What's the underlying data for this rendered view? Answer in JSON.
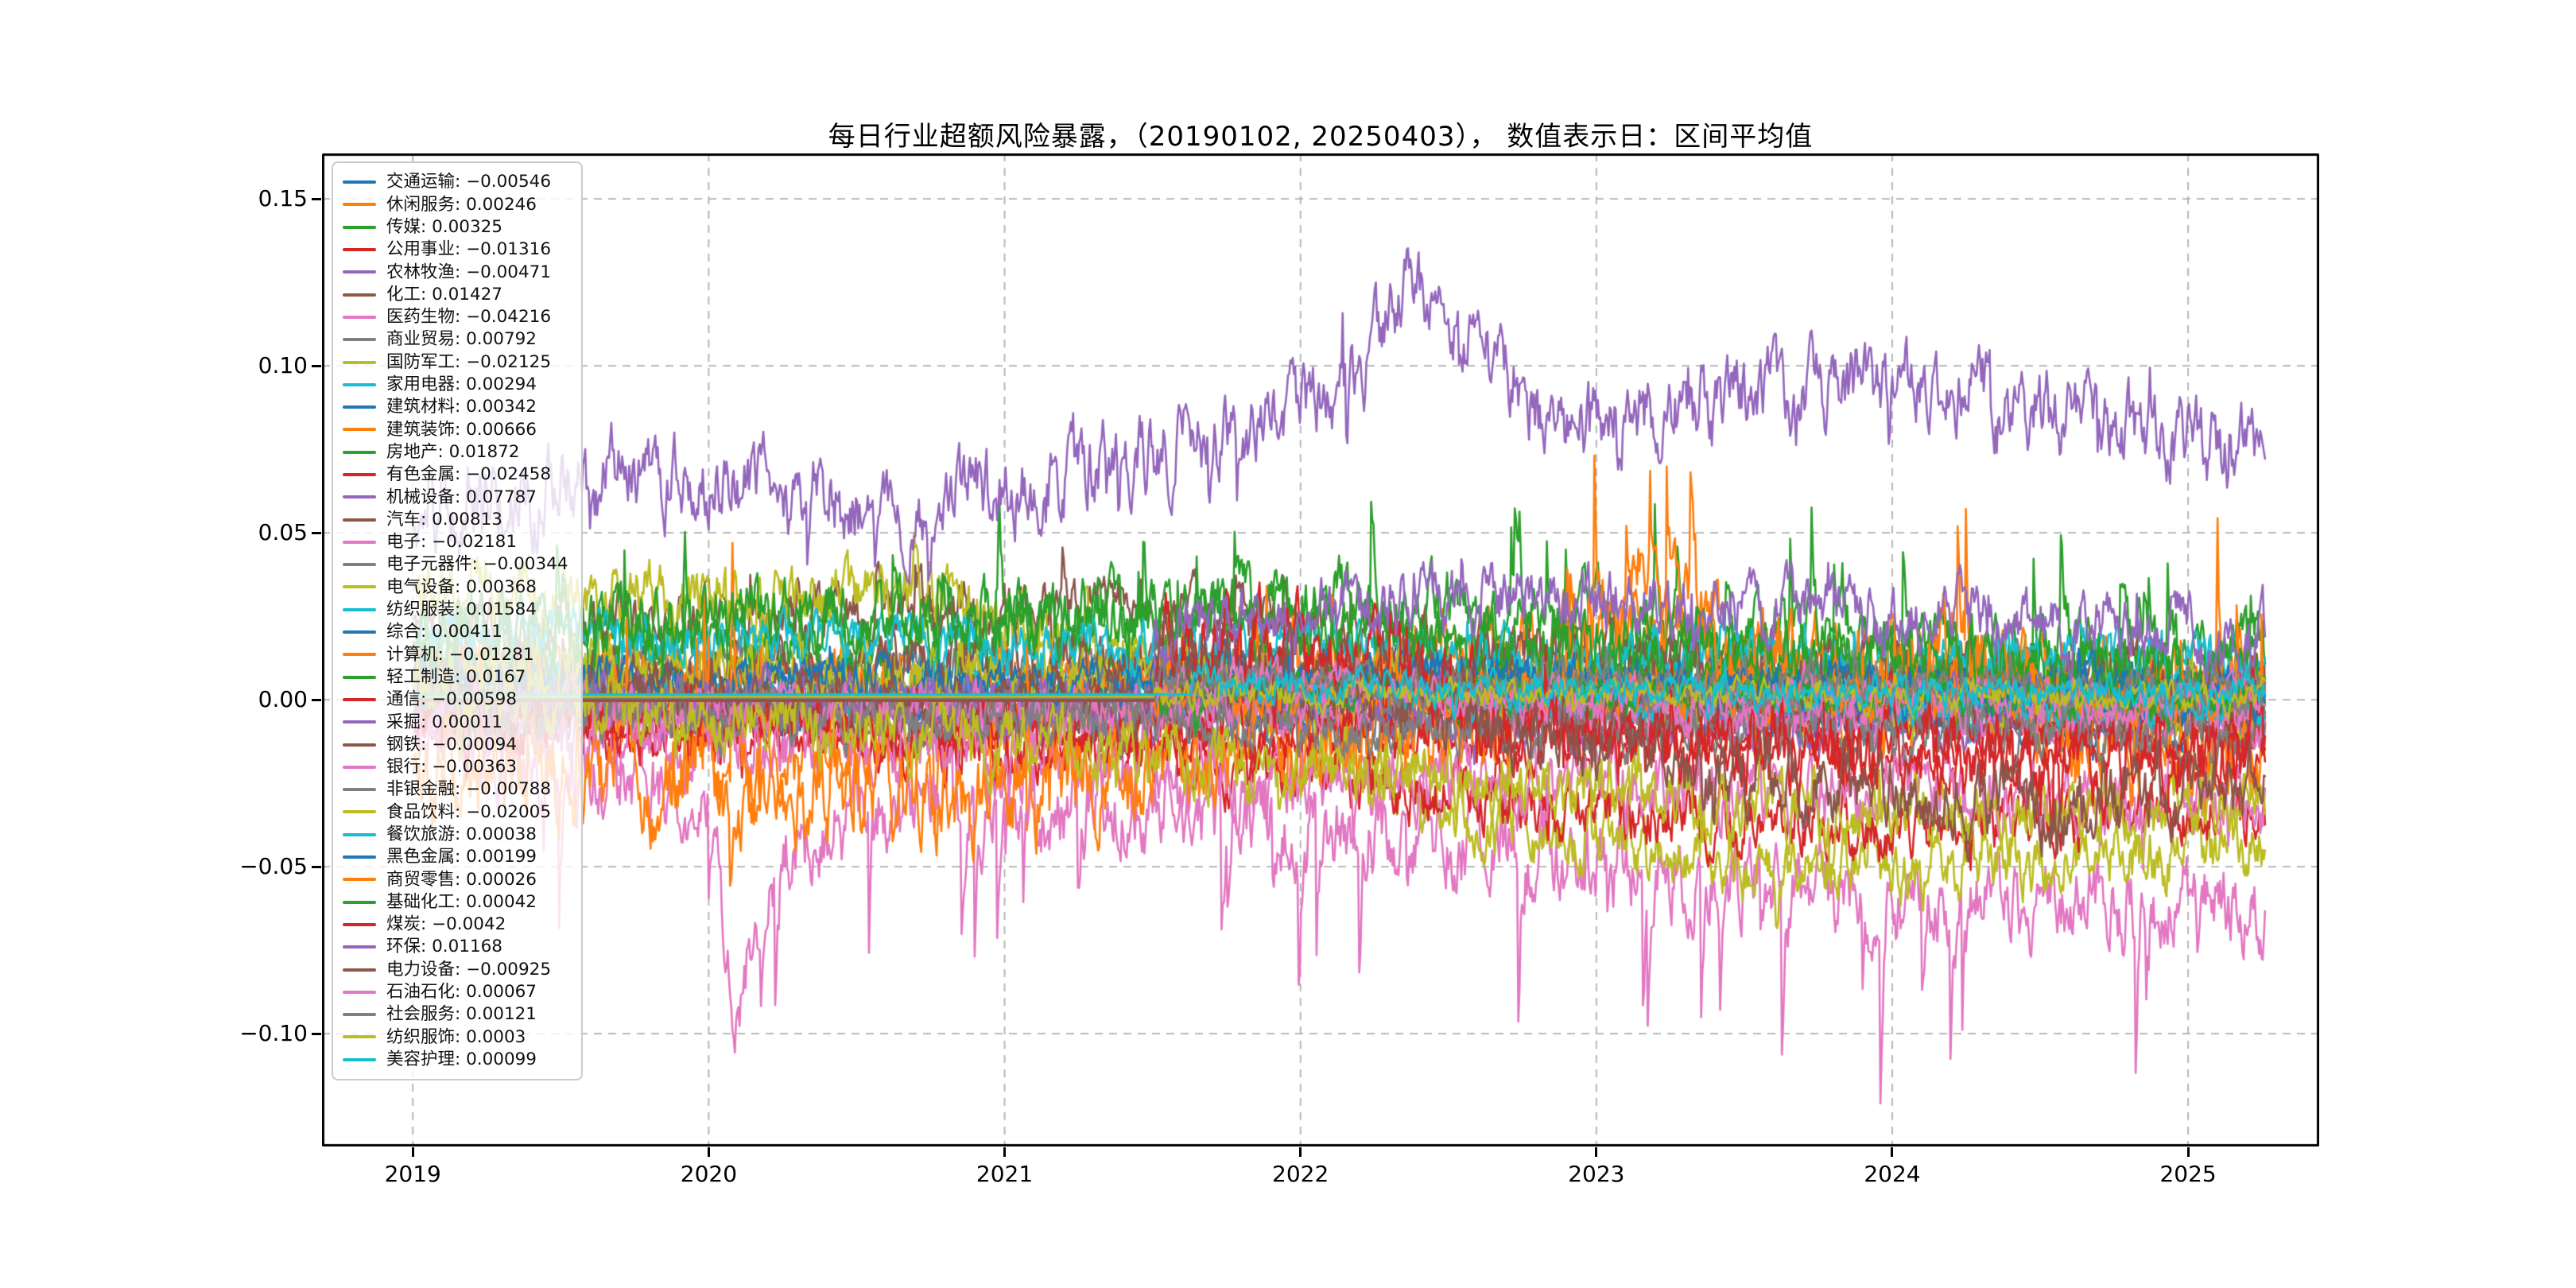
{
  "title": "每日行业超额风险暴露，（20190102, 20250403），  数值表示日：区间平均值",
  "palette": [
    "#1f77b4",
    "#ff7f0e",
    "#2ca02c",
    "#d62728",
    "#9467bd",
    "#8c564b",
    "#e377c2",
    "#7f7f7f",
    "#bcbd22",
    "#17becf"
  ],
  "chart_data": {
    "type": "line",
    "title": "每日行业超额风险暴露，（20190102, 20250403），  数值表示日：区间平均值",
    "date_start": "20190102",
    "date_end": "20250403",
    "grid": "dashed",
    "grid_color": "#b0b0b0",
    "legend_position": "upper-left",
    "line_width": 2.6,
    "x_axis": {
      "ticks": [
        {
          "year": 2019,
          "label": "2019"
        },
        {
          "year": 2020,
          "label": "2020"
        },
        {
          "year": 2021,
          "label": "2021"
        },
        {
          "year": 2022,
          "label": "2022"
        },
        {
          "year": 2023,
          "label": "2023"
        },
        {
          "year": 2024,
          "label": "2024"
        },
        {
          "year": 2025,
          "label": "2025"
        }
      ],
      "range_years": [
        2018.693,
        2025.443
      ],
      "data_span_years": [
        2019.005,
        2025.26
      ]
    },
    "y_axis": {
      "ticks": [
        {
          "v": 0.15,
          "label": "0.15"
        },
        {
          "v": 0.1,
          "label": "0.10"
        },
        {
          "v": 0.05,
          "label": "0.05"
        },
        {
          "v": 0.0,
          "label": "0.00"
        },
        {
          "v": -0.05,
          "label": "−0.05"
        },
        {
          "v": -0.1,
          "label": "−0.10"
        }
      ],
      "range": [
        -0.1338,
        0.1636
      ]
    },
    "series": [
      {
        "label": "交通运输",
        "value_text": "−0.00546",
        "mean": -0.00546,
        "color": "#1f77b4",
        "amp": 0.007,
        "keys": [
          [
            0,
            -0.003
          ],
          [
            1,
            -0.008
          ]
        ]
      },
      {
        "label": "休闲服务",
        "value_text": "0.00246",
        "mean": 0.00246,
        "color": "#ff7f0e",
        "amp": 0.013,
        "spike": 2.2,
        "bias": -0.2,
        "keys": [
          [
            0,
            0.008
          ],
          [
            0.15,
            0.002
          ],
          [
            0.172,
            -0.04
          ],
          [
            0.2,
            -0.022
          ],
          [
            0.3,
            -0.008
          ],
          [
            0.5,
            0.006
          ],
          [
            0.66,
            0.022
          ],
          [
            0.78,
            0.012
          ],
          [
            1,
            0.004
          ]
        ]
      },
      {
        "label": "传媒",
        "value_text": "0.00325",
        "mean": 0.00325,
        "color": "#2ca02c",
        "amp": 0.01,
        "keys": [
          [
            0,
            0.006
          ],
          [
            0.55,
            0.002
          ],
          [
            0.66,
            0.014
          ],
          [
            1,
            0.0
          ]
        ]
      },
      {
        "label": "公用事业",
        "value_text": "−0.01316",
        "mean": -0.01316,
        "color": "#d62728",
        "amp": 0.008,
        "keys": [
          [
            0,
            -0.008
          ],
          [
            0.5,
            -0.013
          ],
          [
            1,
            -0.018
          ]
        ]
      },
      {
        "label": "农林牧渔",
        "value_text": "−0.00471",
        "mean": -0.00471,
        "color": "#9467bd",
        "amp": 0.009,
        "keys": [
          [
            0,
            0.0
          ],
          [
            0.3,
            -0.006
          ],
          [
            1,
            -0.008
          ]
        ]
      },
      {
        "label": "化工",
        "value_text": "0.01427",
        "mean": 0.01427,
        "color": "#8c564b",
        "amp": 0.011,
        "keys": [
          [
            0,
            0.02
          ],
          [
            0.35,
            0.03
          ],
          [
            0.55,
            0.018
          ],
          [
            0.75,
            0.008
          ],
          [
            1,
            0.004
          ]
        ]
      },
      {
        "label": "医药生物",
        "value_text": "−0.04216",
        "mean": -0.04216,
        "color": "#e377c2",
        "amp": 0.016,
        "spike": 2.4,
        "bias": -0.7,
        "keys": [
          [
            0,
            -0.012
          ],
          [
            0.16,
            -0.028
          ],
          [
            0.173,
            -0.098
          ],
          [
            0.19,
            -0.052
          ],
          [
            0.26,
            -0.028
          ],
          [
            0.45,
            -0.035
          ],
          [
            0.6,
            -0.045
          ],
          [
            0.75,
            -0.058
          ],
          [
            0.9,
            -0.062
          ],
          [
            1,
            -0.06
          ]
        ]
      },
      {
        "label": "商业贸易",
        "value_text": "0.00792",
        "mean": 0.00792,
        "color": "#7f7f7f",
        "amp": 0.008,
        "keys": [
          [
            0,
            0.012
          ],
          [
            0.5,
            0.008
          ],
          [
            1,
            0.003
          ]
        ]
      },
      {
        "label": "国防军工",
        "value_text": "−0.02125",
        "mean": -0.02125,
        "color": "#bcbd22",
        "amp": 0.012,
        "keys": [
          [
            0,
            0.032
          ],
          [
            0.28,
            0.03
          ],
          [
            0.45,
            0.0
          ],
          [
            0.6,
            -0.042
          ],
          [
            0.78,
            -0.052
          ],
          [
            1,
            -0.045
          ]
        ]
      },
      {
        "label": "家用电器",
        "value_text": "0.00294",
        "mean": 0.00294,
        "color": "#17becf",
        "amp": 0.009,
        "keys": [
          [
            0,
            0.006
          ],
          [
            0.5,
            0.003
          ],
          [
            1,
            0.0
          ]
        ]
      },
      {
        "label": "建筑材料",
        "value_text": "0.00342",
        "mean": 0.00342,
        "color": "#1f77b4",
        "amp": 0.009,
        "keys": [
          [
            0,
            0.006
          ],
          [
            1,
            0.001
          ]
        ]
      },
      {
        "label": "建筑装饰",
        "value_text": "0.00666",
        "mean": 0.00666,
        "color": "#ff7f0e",
        "amp": 0.009,
        "keys": [
          [
            0,
            0.009
          ],
          [
            1,
            0.004
          ]
        ]
      },
      {
        "label": "房地产",
        "value_text": "0.01872",
        "mean": 0.01872,
        "color": "#2ca02c",
        "amp": 0.013,
        "spike": 2.0,
        "bias": 0.5,
        "keys": [
          [
            0,
            0.012
          ],
          [
            0.3,
            0.02
          ],
          [
            0.5,
            0.03
          ],
          [
            0.65,
            0.024
          ],
          [
            0.8,
            0.018
          ],
          [
            1,
            0.012
          ]
        ]
      },
      {
        "label": "有色金属",
        "value_text": "−0.02458",
        "mean": -0.02458,
        "color": "#d62728",
        "amp": 0.012,
        "keys": [
          [
            0,
            -0.004
          ],
          [
            0.35,
            -0.015
          ],
          [
            0.6,
            -0.03
          ],
          [
            0.8,
            -0.04
          ],
          [
            1,
            -0.034
          ]
        ]
      },
      {
        "label": "机械设备",
        "value_text": "0.07787",
        "mean": 0.07787,
        "color": "#9467bd",
        "amp": 0.015,
        "keys": [
          [
            0,
            0.055
          ],
          [
            0.12,
            0.068
          ],
          [
            0.28,
            0.058
          ],
          [
            0.44,
            0.08
          ],
          [
            0.5,
            0.092
          ],
          [
            0.535,
            0.124
          ],
          [
            0.57,
            0.108
          ],
          [
            0.62,
            0.08
          ],
          [
            0.7,
            0.09
          ],
          [
            0.8,
            0.096
          ],
          [
            0.9,
            0.085
          ],
          [
            1,
            0.072
          ]
        ]
      },
      {
        "label": "汽车",
        "value_text": "0.00813",
        "mean": 0.00813,
        "color": "#8c564b",
        "amp": 0.01,
        "keys": [
          [
            0,
            0.006
          ],
          [
            0.5,
            0.013
          ],
          [
            1,
            0.005
          ]
        ]
      },
      {
        "label": "电子",
        "value_text": "−0.02181",
        "mean": -0.02181,
        "color": "#e377c2",
        "amp": 0.013,
        "keys": [
          [
            0,
            -0.008
          ],
          [
            0.4,
            -0.02
          ],
          [
            0.7,
            -0.028
          ],
          [
            1,
            -0.03
          ]
        ]
      },
      {
        "label": "电子元器件",
        "value_text": "−0.00344",
        "mean": -0.00344,
        "color": "#7f7f7f",
        "amp": 0.007,
        "keys": [
          [
            0,
            -0.002
          ],
          [
            1,
            -0.005
          ]
        ]
      },
      {
        "label": "电气设备",
        "value_text": "0.00368",
        "mean": 0.00368,
        "color": "#bcbd22",
        "amp": 0.011,
        "keys": [
          [
            0,
            0.012
          ],
          [
            0.4,
            0.006
          ],
          [
            0.7,
            -0.002
          ],
          [
            1,
            -0.004
          ]
        ]
      },
      {
        "label": "纺织服装",
        "value_text": "0.01584",
        "mean": 0.01584,
        "color": "#17becf",
        "amp": 0.009,
        "keys": [
          [
            0,
            0.02
          ],
          [
            0.5,
            0.016
          ],
          [
            1,
            0.011
          ]
        ]
      },
      {
        "label": "综合",
        "value_text": "0.00411",
        "mean": 0.00411,
        "color": "#1f77b4",
        "amp": 0.008,
        "keys": [
          [
            0,
            0.006
          ],
          [
            1,
            0.002
          ]
        ]
      },
      {
        "label": "计算机",
        "value_text": "−0.01281",
        "mean": -0.01281,
        "color": "#ff7f0e",
        "amp": 0.018,
        "spike": 2.4,
        "bias": 0.55,
        "keys": [
          [
            0,
            -0.024
          ],
          [
            0.3,
            -0.03
          ],
          [
            0.52,
            -0.012
          ],
          [
            0.62,
            0.0
          ],
          [
            0.66,
            0.04
          ],
          [
            0.7,
            0.018
          ],
          [
            0.76,
            0.0
          ],
          [
            0.83,
            0.016
          ],
          [
            0.9,
            -0.012
          ],
          [
            1,
            -0.016
          ]
        ]
      },
      {
        "label": "轻工制造",
        "value_text": "0.0167",
        "mean": 0.0167,
        "color": "#2ca02c",
        "amp": 0.012,
        "keys": [
          [
            0,
            0.022
          ],
          [
            0.4,
            0.026
          ],
          [
            0.7,
            0.014
          ],
          [
            1,
            0.008
          ]
        ]
      },
      {
        "label": "通信",
        "value_text": "−0.00598",
        "mean": -0.00598,
        "color": "#d62728",
        "amp": 0.009,
        "keys": [
          [
            0,
            -0.004
          ],
          [
            1,
            -0.009
          ]
        ]
      },
      {
        "label": "采掘",
        "value_text": "0.00011",
        "mean": 0.00011,
        "color": "#9467bd",
        "amp": 0.008,
        "keys": [
          [
            0,
            0.001
          ],
          [
            1,
            -0.001
          ]
        ]
      },
      {
        "label": "钢铁",
        "value_text": "−0.00094",
        "mean": -0.00094,
        "color": "#8c564b",
        "amp": 0.009,
        "keys": [
          [
            0,
            0.001
          ],
          [
            1,
            -0.003
          ]
        ]
      },
      {
        "label": "银行",
        "value_text": "−0.00363",
        "mean": -0.00363,
        "color": "#e377c2",
        "amp": 0.008,
        "keys": [
          [
            0,
            -0.001
          ],
          [
            1,
            -0.006
          ]
        ]
      },
      {
        "label": "非银金融",
        "value_text": "−0.00788",
        "mean": -0.00788,
        "color": "#7f7f7f",
        "amp": 0.009,
        "keys": [
          [
            0,
            -0.004
          ],
          [
            1,
            -0.011
          ]
        ]
      },
      {
        "label": "食品饮料",
        "value_text": "−0.02005",
        "mean": -0.02005,
        "color": "#bcbd22",
        "amp": 0.012,
        "keys": [
          [
            0,
            0.006
          ],
          [
            0.3,
            -0.012
          ],
          [
            0.6,
            -0.027
          ],
          [
            0.85,
            -0.036
          ],
          [
            1,
            -0.03
          ]
        ]
      },
      {
        "label": "餐饮旅游",
        "value_text": "0.00038",
        "mean": 0.00038,
        "color": "#17becf",
        "amp": 0.006,
        "start": 0.45,
        "flat": 0.0013,
        "keys": [
          [
            0.45,
            0.002
          ],
          [
            1,
            -0.002
          ]
        ]
      },
      {
        "label": "黑色金属",
        "value_text": "0.00199",
        "mean": 0.00199,
        "color": "#1f77b4",
        "amp": 0.008,
        "start": 0.4,
        "flat": 0.0004,
        "keys": [
          [
            0.4,
            0.008
          ],
          [
            0.7,
            0.004
          ],
          [
            1,
            0.002
          ]
        ]
      },
      {
        "label": "商贸零售",
        "value_text": "0.00026",
        "mean": 0.00026,
        "color": "#ff7f0e",
        "amp": 0.007,
        "start": 0.4,
        "flat": 0.0,
        "keys": [
          [
            0.4,
            0.002
          ],
          [
            1,
            0.0
          ]
        ]
      },
      {
        "label": "基础化工",
        "value_text": "0.00042",
        "mean": 0.00042,
        "color": "#2ca02c",
        "amp": 0.007,
        "start": 0.4,
        "flat": 0.0002,
        "keys": [
          [
            0.4,
            0.003
          ],
          [
            1,
            0.0
          ]
        ]
      },
      {
        "label": "煤炭",
        "value_text": "−0.0042",
        "mean": -0.0042,
        "color": "#d62728",
        "amp": 0.016,
        "start": 0.4,
        "flat": -0.0002,
        "keys": [
          [
            0.4,
            0.012
          ],
          [
            0.5,
            0.02
          ],
          [
            0.56,
            0.0
          ],
          [
            0.62,
            -0.012
          ],
          [
            0.8,
            -0.016
          ],
          [
            1,
            -0.02
          ]
        ]
      },
      {
        "label": "环保",
        "value_text": "0.01168",
        "mean": 0.01168,
        "color": "#9467bd",
        "amp": 0.012,
        "start": 0.4,
        "flat": 0.0006,
        "keys": [
          [
            0.4,
            0.02
          ],
          [
            0.6,
            0.032
          ],
          [
            0.8,
            0.026
          ],
          [
            1,
            0.02
          ]
        ]
      },
      {
        "label": "电力设备",
        "value_text": "−0.00925",
        "mean": -0.00925,
        "color": "#8c564b",
        "amp": 0.013,
        "start": 0.4,
        "flat": -0.0004,
        "keys": [
          [
            0.4,
            0.012
          ],
          [
            0.55,
            0.0
          ],
          [
            0.7,
            -0.022
          ],
          [
            0.85,
            -0.032
          ],
          [
            1,
            -0.026
          ]
        ]
      },
      {
        "label": "石油石化",
        "value_text": "0.00067",
        "mean": 0.00067,
        "color": "#e377c2",
        "amp": 0.008,
        "start": 0.4,
        "flat": 0.0008,
        "keys": [
          [
            0.4,
            0.005
          ],
          [
            0.7,
            0.0
          ],
          [
            1,
            0.0
          ]
        ]
      },
      {
        "label": "社会服务",
        "value_text": "0.00121",
        "mean": 0.00121,
        "color": "#7f7f7f",
        "amp": 0.007,
        "start": 0.4,
        "flat": 0.0005,
        "keys": [
          [
            0.4,
            0.005
          ],
          [
            1,
            0.002
          ]
        ]
      },
      {
        "label": "纺织服饰",
        "value_text": "0.0003",
        "mean": 0.0003,
        "color": "#bcbd22",
        "amp": 0.005,
        "start": 0.4,
        "flat": 0.0009,
        "keys": [
          [
            0.4,
            0.002
          ],
          [
            1,
            0.001
          ]
        ]
      },
      {
        "label": "美容护理",
        "value_text": "0.00099",
        "mean": 0.00099,
        "color": "#17becf",
        "amp": 0.006,
        "start": 0.42,
        "flat": 0.0016,
        "keys": [
          [
            0.42,
            0.004
          ],
          [
            1,
            0.002
          ]
        ]
      }
    ]
  }
}
